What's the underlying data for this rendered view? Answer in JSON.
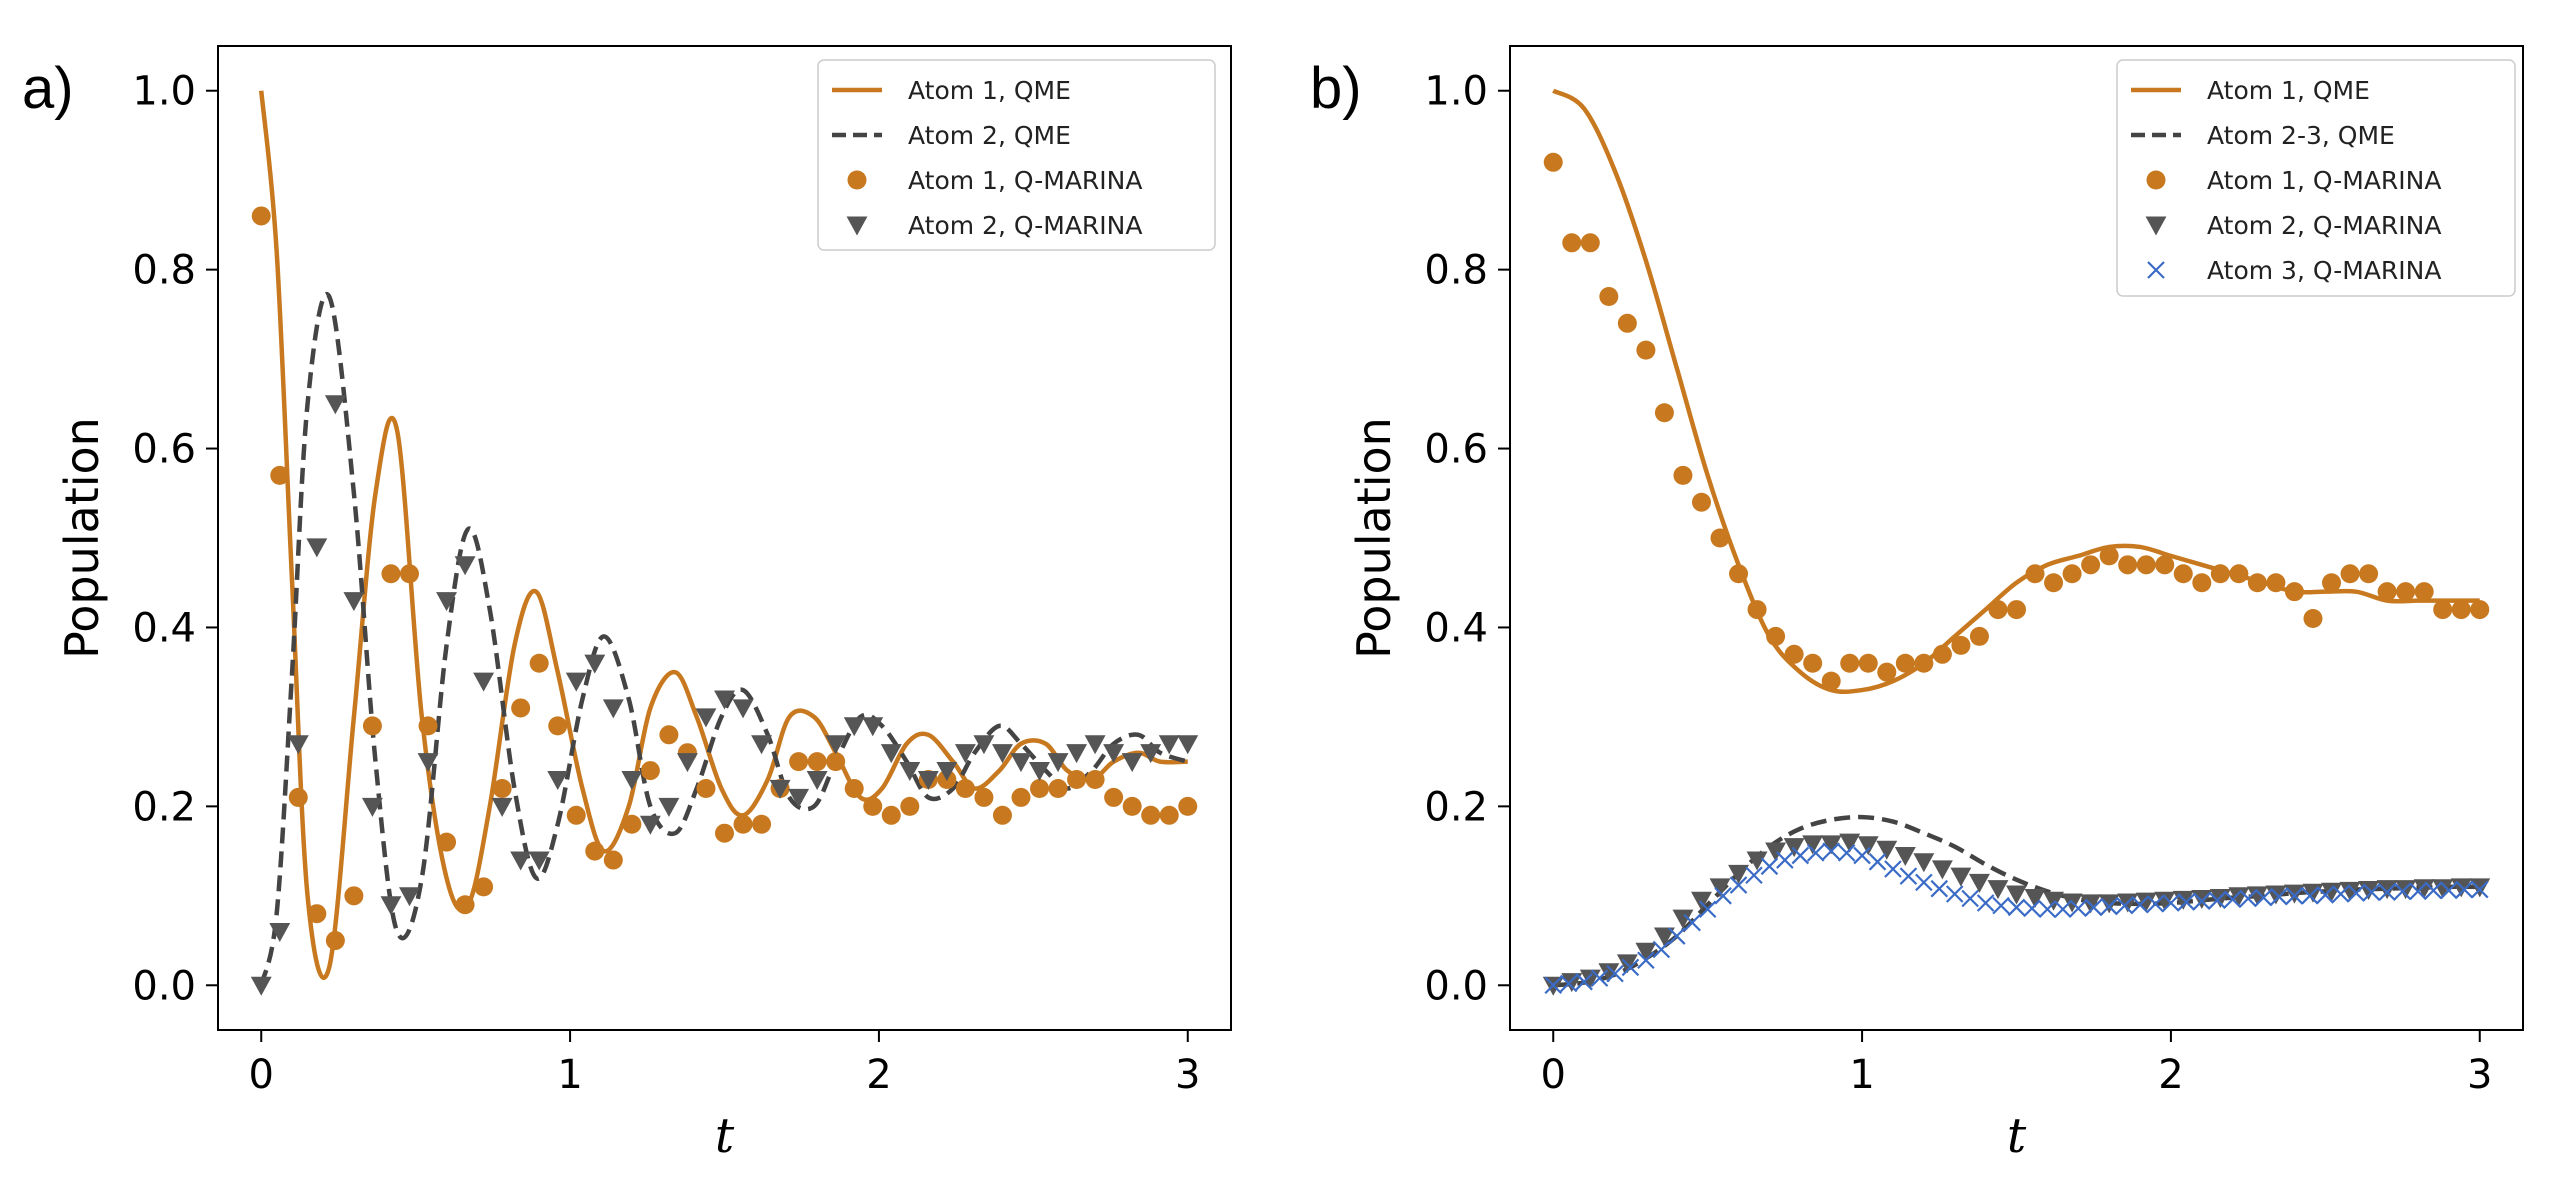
{
  "chart_data": [
    {
      "panel_label": "a)",
      "type": "line",
      "xlabel": "t",
      "ylabel": "Population",
      "xlim": [
        -0.14,
        3.14
      ],
      "ylim": [
        -0.05,
        1.05
      ],
      "xticks": [
        0,
        1,
        2,
        3
      ],
      "xtick_labels": [
        "0",
        "1",
        "2",
        "3"
      ],
      "yticks": [
        0.0,
        0.2,
        0.4,
        0.6,
        0.8,
        1.0
      ],
      "ytick_labels": [
        "0.0",
        "0.2",
        "0.4",
        "0.6",
        "0.8",
        "1.0"
      ],
      "grid": false,
      "legend_position": "top-right",
      "series": [
        {
          "name": "Atom 1, QME",
          "style": "solid",
          "color": "#c8791f",
          "x": [
            0,
            0.05,
            0.1,
            0.15,
            0.22,
            0.3,
            0.37,
            0.44,
            0.52,
            0.6,
            0.67,
            0.74,
            0.82,
            0.89,
            0.96,
            1.04,
            1.11,
            1.19,
            1.26,
            1.34,
            1.41,
            1.49,
            1.56,
            1.64,
            1.71,
            1.79,
            1.86,
            1.94,
            2.01,
            2.09,
            2.16,
            2.24,
            2.31,
            2.39,
            2.46,
            2.54,
            2.61,
            2.69,
            2.76,
            2.84,
            2.91,
            3.0
          ],
          "y": [
            1.0,
            0.82,
            0.45,
            0.1,
            0.02,
            0.3,
            0.55,
            0.62,
            0.3,
            0.12,
            0.09,
            0.2,
            0.38,
            0.44,
            0.35,
            0.22,
            0.15,
            0.2,
            0.31,
            0.35,
            0.3,
            0.22,
            0.19,
            0.23,
            0.3,
            0.3,
            0.26,
            0.21,
            0.22,
            0.27,
            0.28,
            0.25,
            0.22,
            0.24,
            0.27,
            0.27,
            0.24,
            0.23,
            0.25,
            0.26,
            0.25,
            0.25
          ]
        },
        {
          "name": "Atom 2, QME",
          "style": "dashed",
          "color": "#444444",
          "x": [
            0,
            0.05,
            0.1,
            0.15,
            0.22,
            0.3,
            0.37,
            0.44,
            0.52,
            0.6,
            0.67,
            0.74,
            0.82,
            0.89,
            0.96,
            1.04,
            1.11,
            1.19,
            1.26,
            1.34,
            1.41,
            1.49,
            1.56,
            1.64,
            1.71,
            1.79,
            1.86,
            1.94,
            2.01,
            2.09,
            2.16,
            2.24,
            2.31,
            2.39,
            2.46,
            2.54,
            2.61,
            2.69,
            2.76,
            2.84,
            2.91,
            3.0
          ],
          "y": [
            0.0,
            0.08,
            0.35,
            0.65,
            0.77,
            0.55,
            0.25,
            0.06,
            0.12,
            0.38,
            0.51,
            0.42,
            0.22,
            0.12,
            0.18,
            0.32,
            0.39,
            0.32,
            0.2,
            0.17,
            0.22,
            0.3,
            0.33,
            0.28,
            0.21,
            0.2,
            0.25,
            0.3,
            0.29,
            0.25,
            0.21,
            0.22,
            0.26,
            0.29,
            0.27,
            0.24,
            0.22,
            0.24,
            0.27,
            0.28,
            0.26,
            0.25
          ]
        },
        {
          "name": "Atom 1, Q-MARINA",
          "style": "circle",
          "color": "#c8791f",
          "x": [
            0,
            0.06,
            0.12,
            0.18,
            0.24,
            0.3,
            0.36,
            0.42,
            0.48,
            0.54,
            0.6,
            0.66,
            0.72,
            0.78,
            0.84,
            0.9,
            0.96,
            1.02,
            1.08,
            1.14,
            1.2,
            1.26,
            1.32,
            1.38,
            1.44,
            1.5,
            1.56,
            1.62,
            1.68,
            1.74,
            1.8,
            1.86,
            1.92,
            1.98,
            2.04,
            2.1,
            2.16,
            2.22,
            2.28,
            2.34,
            2.4,
            2.46,
            2.52,
            2.58,
            2.64,
            2.7,
            2.76,
            2.82,
            2.88,
            2.94,
            3.0
          ],
          "y": [
            0.86,
            0.57,
            0.21,
            0.08,
            0.05,
            0.1,
            0.29,
            0.46,
            0.46,
            0.29,
            0.16,
            0.09,
            0.11,
            0.22,
            0.31,
            0.36,
            0.29,
            0.19,
            0.15,
            0.14,
            0.18,
            0.24,
            0.28,
            0.26,
            0.22,
            0.17,
            0.18,
            0.18,
            0.22,
            0.25,
            0.25,
            0.25,
            0.22,
            0.2,
            0.19,
            0.2,
            0.23,
            0.23,
            0.22,
            0.21,
            0.19,
            0.21,
            0.22,
            0.22,
            0.23,
            0.23,
            0.21,
            0.2,
            0.19,
            0.19,
            0.2
          ]
        },
        {
          "name": "Atom 2, Q-MARINA",
          "style": "triangle_down",
          "color": "#555555",
          "x": [
            0,
            0.06,
            0.12,
            0.18,
            0.24,
            0.3,
            0.36,
            0.42,
            0.48,
            0.54,
            0.6,
            0.66,
            0.72,
            0.78,
            0.84,
            0.9,
            0.96,
            1.02,
            1.08,
            1.14,
            1.2,
            1.26,
            1.32,
            1.38,
            1.44,
            1.5,
            1.56,
            1.62,
            1.68,
            1.74,
            1.8,
            1.86,
            1.92,
            1.98,
            2.04,
            2.1,
            2.16,
            2.22,
            2.28,
            2.34,
            2.4,
            2.46,
            2.52,
            2.58,
            2.64,
            2.7,
            2.76,
            2.82,
            2.88,
            2.94,
            3.0
          ],
          "y": [
            0.0,
            0.06,
            0.27,
            0.49,
            0.65,
            0.43,
            0.2,
            0.09,
            0.1,
            0.25,
            0.43,
            0.47,
            0.34,
            0.2,
            0.14,
            0.14,
            0.23,
            0.34,
            0.36,
            0.31,
            0.23,
            0.18,
            0.2,
            0.25,
            0.3,
            0.32,
            0.31,
            0.27,
            0.22,
            0.21,
            0.23,
            0.27,
            0.29,
            0.29,
            0.26,
            0.24,
            0.23,
            0.24,
            0.26,
            0.27,
            0.26,
            0.25,
            0.24,
            0.25,
            0.26,
            0.27,
            0.26,
            0.25,
            0.26,
            0.27,
            0.27
          ]
        }
      ]
    },
    {
      "panel_label": "b)",
      "type": "line",
      "xlabel": "t",
      "ylabel": "Population",
      "xlim": [
        -0.14,
        3.14
      ],
      "ylim": [
        -0.05,
        1.05
      ],
      "xticks": [
        0,
        1,
        2,
        3
      ],
      "xtick_labels": [
        "0",
        "1",
        "2",
        "3"
      ],
      "yticks": [
        0.0,
        0.2,
        0.4,
        0.6,
        0.8,
        1.0
      ],
      "ytick_labels": [
        "0.0",
        "0.2",
        "0.4",
        "0.6",
        "0.8",
        "1.0"
      ],
      "grid": false,
      "legend_position": "top-right",
      "series": [
        {
          "name": "Atom 1, QME",
          "style": "solid",
          "color": "#c8791f",
          "x": [
            0,
            0.1,
            0.2,
            0.3,
            0.4,
            0.5,
            0.6,
            0.7,
            0.8,
            0.9,
            1.0,
            1.1,
            1.2,
            1.3,
            1.4,
            1.5,
            1.6,
            1.7,
            1.8,
            1.9,
            2.0,
            2.1,
            2.2,
            2.3,
            2.4,
            2.5,
            2.6,
            2.7,
            2.8,
            2.9,
            3.0
          ],
          "y": [
            1.0,
            0.98,
            0.91,
            0.81,
            0.69,
            0.57,
            0.47,
            0.39,
            0.35,
            0.33,
            0.33,
            0.34,
            0.36,
            0.39,
            0.42,
            0.45,
            0.47,
            0.48,
            0.49,
            0.49,
            0.48,
            0.47,
            0.46,
            0.45,
            0.44,
            0.44,
            0.44,
            0.43,
            0.43,
            0.43,
            0.43
          ]
        },
        {
          "name": "Atom 2-3, QME",
          "style": "dashed",
          "color": "#444444",
          "x": [
            0,
            0.1,
            0.2,
            0.3,
            0.4,
            0.5,
            0.6,
            0.7,
            0.8,
            0.9,
            1.0,
            1.1,
            1.2,
            1.3,
            1.4,
            1.5,
            1.6,
            1.7,
            1.8,
            1.9,
            2.0,
            2.1,
            2.2,
            2.3,
            2.4,
            2.5,
            2.6,
            2.7,
            2.8,
            2.9,
            3.0
          ],
          "y": [
            0.0,
            0.003,
            0.012,
            0.03,
            0.055,
            0.09,
            0.125,
            0.155,
            0.175,
            0.185,
            0.188,
            0.183,
            0.17,
            0.155,
            0.135,
            0.118,
            0.105,
            0.096,
            0.092,
            0.091,
            0.092,
            0.095,
            0.098,
            0.1,
            0.103,
            0.105,
            0.107,
            0.108,
            0.109,
            0.11,
            0.11
          ]
        },
        {
          "name": "Atom 1, Q-MARINA",
          "style": "circle",
          "color": "#c8791f",
          "x": [
            0,
            0.06,
            0.12,
            0.18,
            0.24,
            0.3,
            0.36,
            0.42,
            0.48,
            0.54,
            0.6,
            0.66,
            0.72,
            0.78,
            0.84,
            0.9,
            0.96,
            1.02,
            1.08,
            1.14,
            1.2,
            1.26,
            1.32,
            1.38,
            1.44,
            1.5,
            1.56,
            1.62,
            1.68,
            1.74,
            1.8,
            1.86,
            1.92,
            1.98,
            2.04,
            2.1,
            2.16,
            2.22,
            2.28,
            2.34,
            2.4,
            2.46,
            2.52,
            2.58,
            2.64,
            2.7,
            2.76,
            2.82,
            2.88,
            2.94,
            3.0
          ],
          "y": [
            0.92,
            0.83,
            0.83,
            0.77,
            0.74,
            0.71,
            0.64,
            0.57,
            0.54,
            0.5,
            0.46,
            0.42,
            0.39,
            0.37,
            0.36,
            0.34,
            0.36,
            0.36,
            0.35,
            0.36,
            0.36,
            0.37,
            0.38,
            0.39,
            0.42,
            0.42,
            0.46,
            0.45,
            0.46,
            0.47,
            0.48,
            0.47,
            0.47,
            0.47,
            0.46,
            0.45,
            0.46,
            0.46,
            0.45,
            0.45,
            0.44,
            0.41,
            0.45,
            0.46,
            0.46,
            0.44,
            0.44,
            0.44,
            0.42,
            0.42,
            0.42
          ]
        },
        {
          "name": "Atom 2, Q-MARINA",
          "style": "triangle_down",
          "color": "#555555",
          "x": [
            0,
            0.06,
            0.12,
            0.18,
            0.24,
            0.3,
            0.36,
            0.42,
            0.48,
            0.54,
            0.6,
            0.66,
            0.72,
            0.78,
            0.84,
            0.9,
            0.96,
            1.02,
            1.08,
            1.14,
            1.2,
            1.26,
            1.32,
            1.38,
            1.44,
            1.5,
            1.56,
            1.62,
            1.68,
            1.74,
            1.8,
            1.86,
            1.92,
            1.98,
            2.04,
            2.1,
            2.16,
            2.22,
            2.28,
            2.34,
            2.4,
            2.46,
            2.52,
            2.58,
            2.64,
            2.7,
            2.76,
            2.82,
            2.88,
            2.94,
            3.0
          ],
          "y": [
            0.0,
            0.004,
            0.008,
            0.015,
            0.025,
            0.038,
            0.055,
            0.075,
            0.095,
            0.11,
            0.125,
            0.14,
            0.15,
            0.155,
            0.158,
            0.158,
            0.16,
            0.157,
            0.152,
            0.145,
            0.138,
            0.13,
            0.122,
            0.115,
            0.108,
            0.102,
            0.098,
            0.095,
            0.093,
            0.092,
            0.092,
            0.093,
            0.094,
            0.095,
            0.096,
            0.097,
            0.098,
            0.1,
            0.101,
            0.102,
            0.103,
            0.104,
            0.105,
            0.106,
            0.107,
            0.108,
            0.108,
            0.109,
            0.109,
            0.11,
            0.11
          ]
        },
        {
          "name": "Atom 3, Q-MARINA",
          "style": "x",
          "color": "#3a6bc6",
          "x": [
            0,
            0.05,
            0.1,
            0.15,
            0.2,
            0.25,
            0.3,
            0.35,
            0.4,
            0.45,
            0.5,
            0.55,
            0.6,
            0.65,
            0.7,
            0.75,
            0.8,
            0.85,
            0.9,
            0.95,
            1.0,
            1.05,
            1.1,
            1.15,
            1.2,
            1.25,
            1.3,
            1.35,
            1.4,
            1.45,
            1.5,
            1.55,
            1.6,
            1.65,
            1.7,
            1.75,
            1.8,
            1.85,
            1.9,
            1.95,
            2.0,
            2.05,
            2.1,
            2.15,
            2.2,
            2.25,
            2.3,
            2.35,
            2.4,
            2.45,
            2.5,
            2.55,
            2.6,
            2.65,
            2.7,
            2.75,
            2.8,
            2.85,
            2.9,
            2.95,
            3.0
          ],
          "y": [
            0.0,
            0.002,
            0.004,
            0.008,
            0.013,
            0.02,
            0.028,
            0.04,
            0.055,
            0.07,
            0.085,
            0.1,
            0.112,
            0.123,
            0.133,
            0.14,
            0.145,
            0.148,
            0.15,
            0.148,
            0.145,
            0.138,
            0.13,
            0.122,
            0.115,
            0.108,
            0.102,
            0.097,
            0.092,
            0.089,
            0.087,
            0.086,
            0.085,
            0.085,
            0.086,
            0.087,
            0.088,
            0.089,
            0.09,
            0.091,
            0.092,
            0.093,
            0.094,
            0.095,
            0.096,
            0.097,
            0.098,
            0.099,
            0.1,
            0.1,
            0.101,
            0.102,
            0.103,
            0.104,
            0.104,
            0.105,
            0.105,
            0.106,
            0.106,
            0.107,
            0.107
          ]
        }
      ]
    }
  ]
}
